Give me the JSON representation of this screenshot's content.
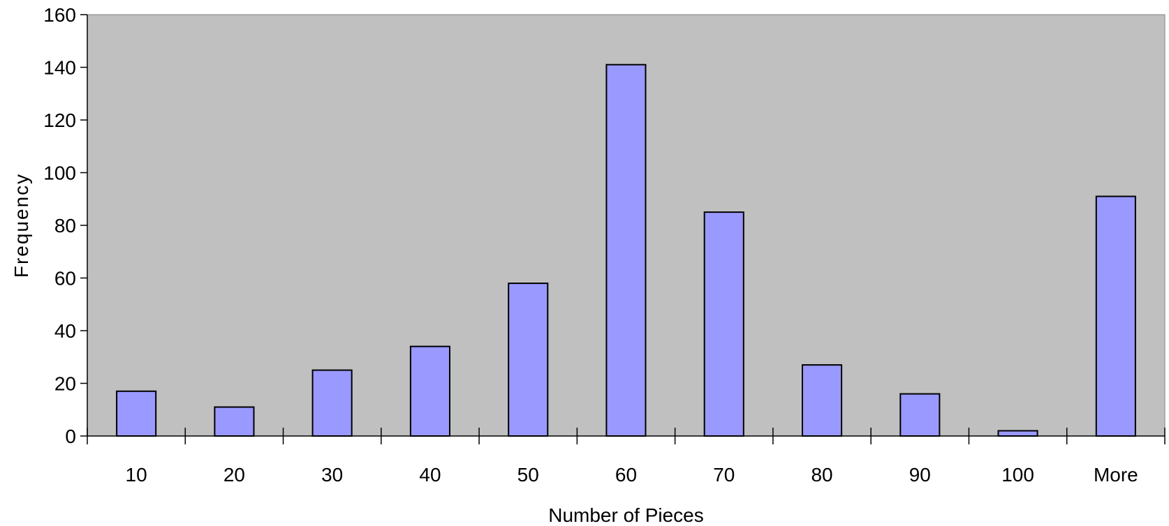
{
  "chart_data": {
    "type": "bar",
    "categories": [
      "10",
      "20",
      "30",
      "40",
      "50",
      "60",
      "70",
      "80",
      "90",
      "100",
      "More"
    ],
    "values": [
      17,
      11,
      25,
      34,
      58,
      141,
      85,
      27,
      16,
      2,
      91
    ],
    "xlabel": "Number of Pieces",
    "ylabel": "Frequency",
    "ylim": [
      0,
      160
    ],
    "yticks": [
      0,
      20,
      40,
      60,
      80,
      100,
      120,
      140,
      160
    ],
    "grid": false,
    "legend": "none",
    "colors": {
      "plot_background": "#c0c0c0",
      "bar_fill": "#9999ff",
      "bar_stroke": "#000000"
    }
  }
}
